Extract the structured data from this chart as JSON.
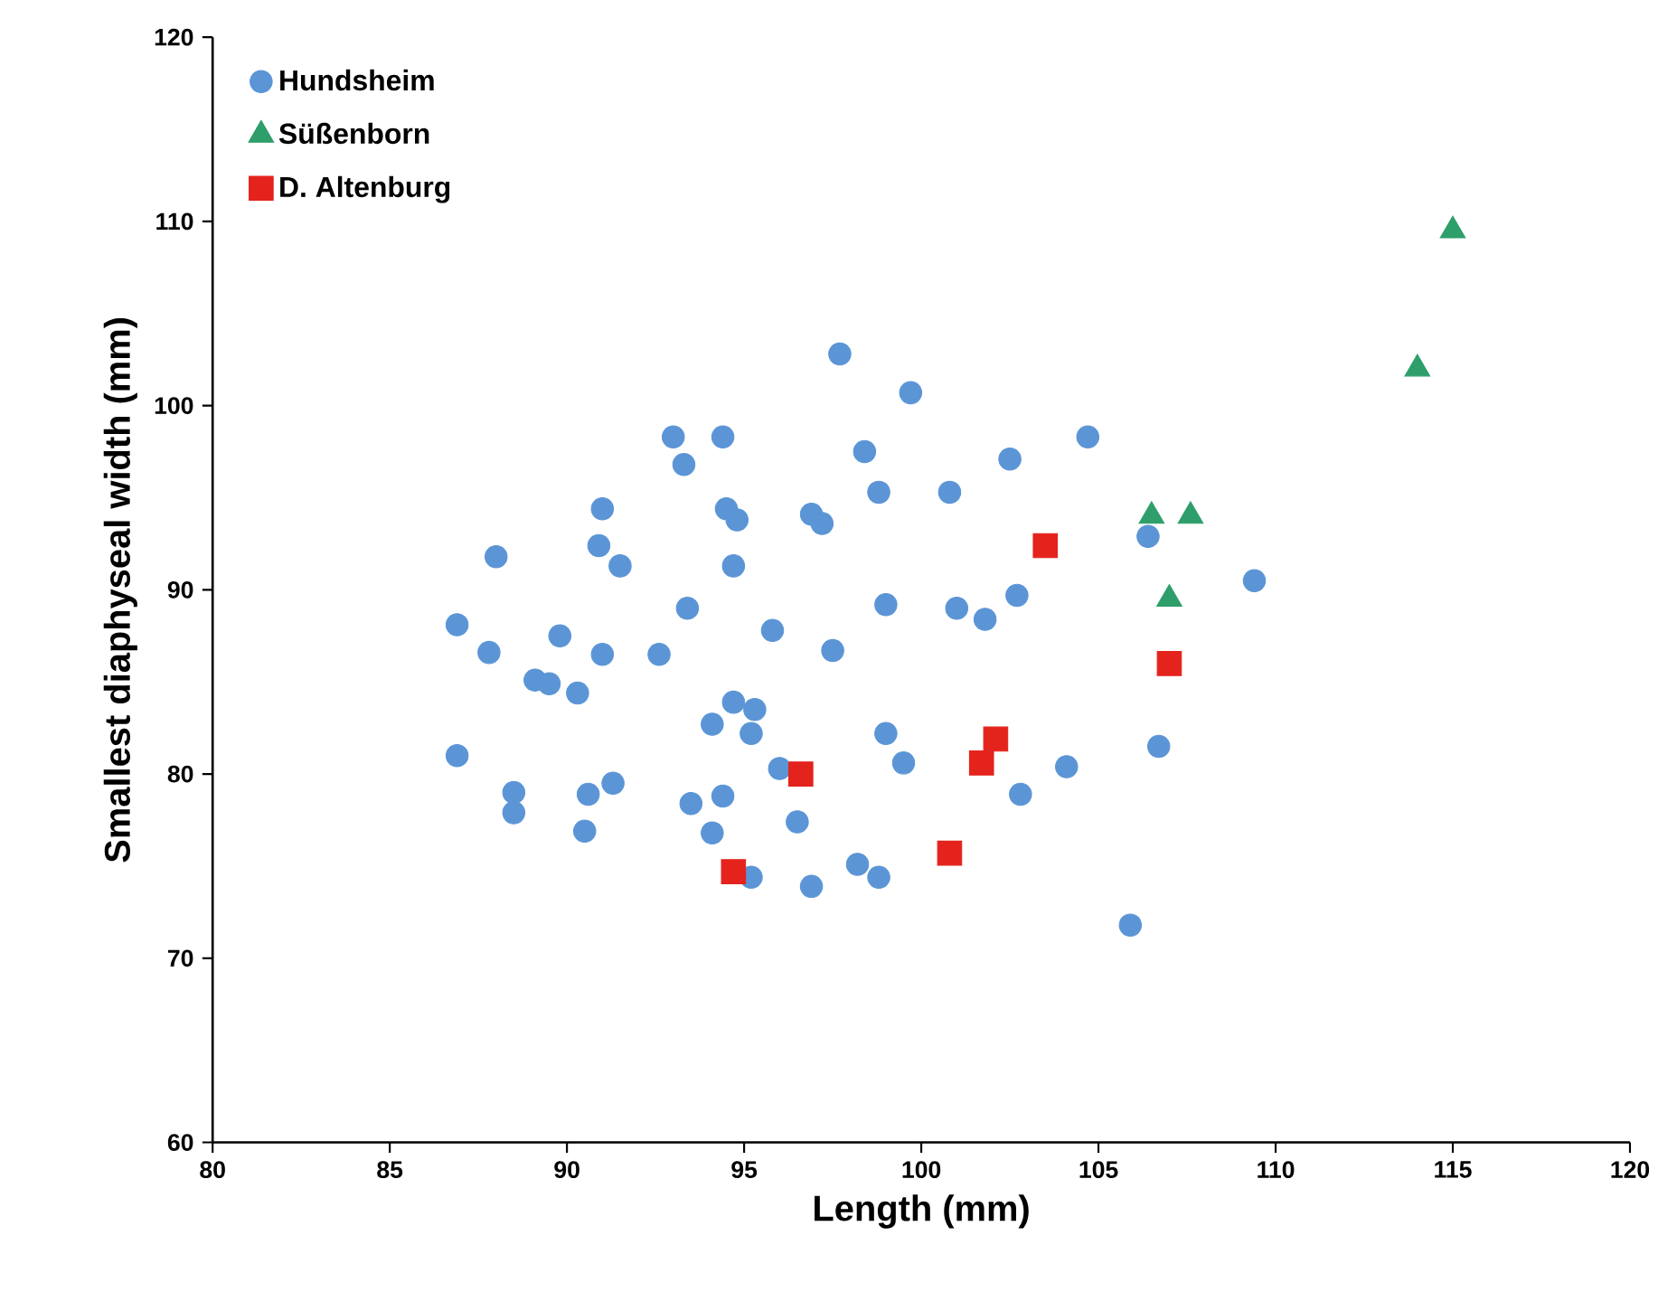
{
  "chart_data": {
    "type": "scatter",
    "xlabel": "Length (mm)",
    "ylabel": "Smallest diaphyseal width (mm)",
    "xlim": [
      80,
      120
    ],
    "ylim": [
      60,
      120
    ],
    "xticks": [
      80,
      85,
      90,
      95,
      100,
      105,
      110,
      115,
      120
    ],
    "yticks": [
      60,
      70,
      80,
      90,
      100,
      110,
      120
    ],
    "grid": false,
    "legend": "top left",
    "series": [
      {
        "name": "Hundsheim",
        "color": "#5b95d6",
        "marker": "circle",
        "x": [
          97.7,
          99.7,
          93.0,
          94.4,
          93.3,
          98.4,
          102.5,
          104.7,
          91.0,
          94.5,
          94.8,
          96.9,
          97.2,
          98.8,
          100.8,
          90.9,
          91.5,
          94.7,
          88.0,
          93.4,
          86.9,
          87.8,
          89.8,
          91.0,
          92.6,
          95.8,
          97.5,
          99.0,
          101.0,
          101.8,
          102.7,
          89.1,
          89.5,
          90.3,
          94.7,
          95.3,
          94.1,
          95.2,
          99.0,
          99.5,
          96.0,
          102.8,
          86.9,
          88.5,
          88.5,
          90.6,
          91.3,
          90.5,
          93.5,
          94.4,
          94.1,
          96.5,
          95.2,
          96.9,
          98.2,
          98.8,
          109.4,
          106.4,
          106.7,
          104.1,
          105.9
        ],
        "values": [
          102.8,
          100.7,
          98.3,
          98.3,
          96.8,
          97.5,
          97.1,
          98.3,
          94.4,
          94.4,
          93.8,
          94.1,
          93.6,
          95.3,
          95.3,
          92.4,
          91.3,
          91.3,
          91.8,
          89.0,
          88.1,
          86.6,
          87.5,
          86.5,
          86.5,
          87.8,
          86.7,
          89.2,
          89.0,
          88.4,
          89.7,
          85.1,
          84.9,
          84.4,
          83.9,
          83.5,
          82.7,
          82.2,
          82.2,
          80.6,
          80.3,
          78.9,
          81.0,
          79.0,
          77.9,
          78.9,
          79.5,
          76.9,
          78.4,
          78.8,
          76.8,
          77.4,
          74.4,
          73.9,
          75.1,
          74.4,
          90.5,
          92.9,
          81.5,
          80.4,
          71.8
        ]
      },
      {
        "name": "Süßenborn",
        "color": "#2e9e6a",
        "marker": "triangle",
        "x": [
          115.0,
          114.0,
          106.5,
          107.6,
          107.0
        ],
        "values": [
          109.5,
          102.0,
          94.0,
          94.0,
          89.5
        ]
      },
      {
        "name": "D. Altenburg",
        "color": "#e3231c",
        "marker": "square",
        "x": [
          96.6,
          94.7,
          100.8,
          102.1,
          101.7,
          103.5,
          107.0
        ],
        "values": [
          80.0,
          74.7,
          75.7,
          81.9,
          80.6,
          92.4,
          86.0
        ]
      }
    ]
  }
}
